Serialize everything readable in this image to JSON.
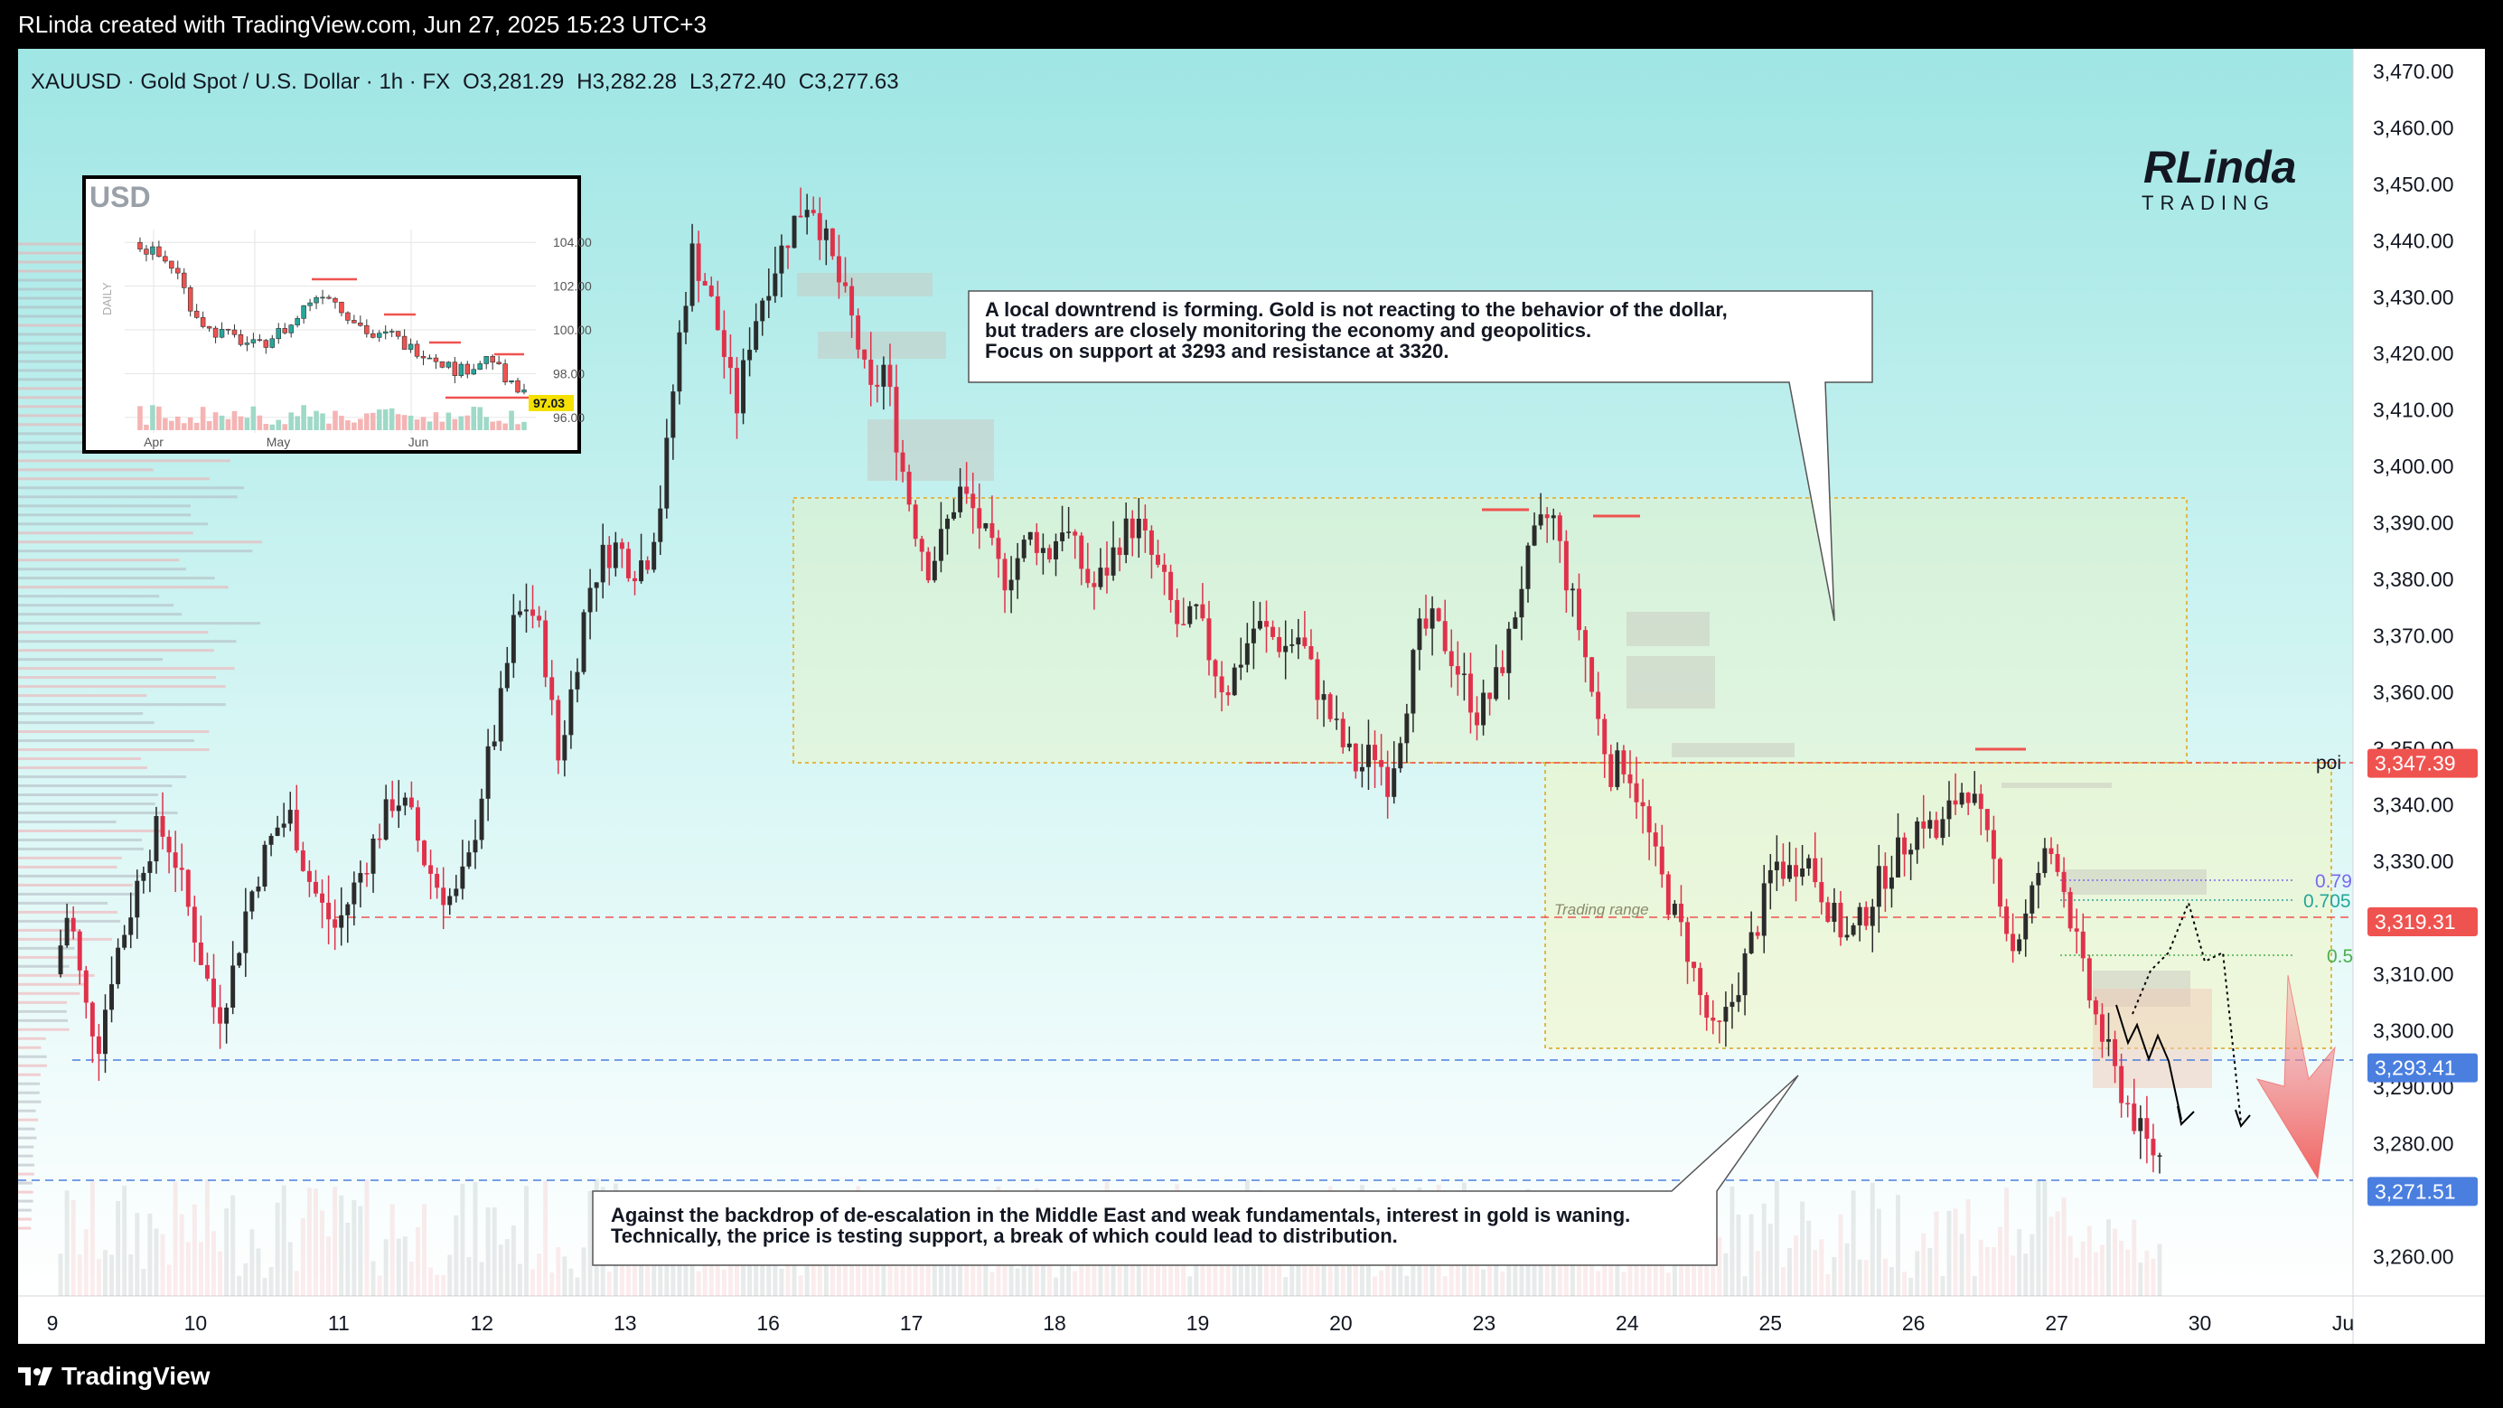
{
  "header": {
    "attribution": "RLinda created with TradingView.com, Jun 27, 2025 15:23 UTC+3"
  },
  "legend": {
    "symbol": "XAUUSD · Gold Spot / U.S. Dollar · 1h · FX",
    "open_label": "O",
    "open": "3,281.29",
    "high_label": "H",
    "high": "3,282.28",
    "low_label": "L",
    "low": "3,272.40",
    "close_label": "C",
    "close": "3,277.63"
  },
  "branding": {
    "logo_text": "RLinda",
    "logo_sub": "TRADING",
    "footer": "TradingView"
  },
  "colors": {
    "up": "#26a69a",
    "down": "#ef5350",
    "candle_up": "#2b2b2b",
    "candle_down": "#e0314b",
    "bg_top": "#9fe6e4",
    "bg_bottom": "#ffffff",
    "support": "#4a7fe0",
    "resistance": "#ef5350",
    "zone": "#f6f4c8"
  },
  "chart_data": [
    {
      "type": "candlestick",
      "title": "XAUUSD · Gold Spot / U.S. Dollar · 1h · FX",
      "x_tick_labels": [
        "9",
        "10",
        "11",
        "12",
        "13",
        "16",
        "17",
        "18",
        "19",
        "20",
        "23",
        "24",
        "25",
        "26",
        "27",
        "30",
        "Ju"
      ],
      "y_tick_labels": [
        "3,470.00",
        "3,460.00",
        "3,450.00",
        "3,440.00",
        "3,430.00",
        "3,420.00",
        "3,410.00",
        "3,400.00",
        "3,390.00",
        "3,380.00",
        "3,370.00",
        "3,360.00",
        "3,350.00",
        "3,340.00",
        "3,330.00",
        "3,320.00",
        "3,310.00",
        "3,300.00",
        "3,290.00",
        "3,280.00",
        "3,260.00"
      ],
      "ylim": [
        3253,
        3474
      ],
      "price_path_points": [
        [
          0,
          3310
        ],
        [
          4,
          3322
        ],
        [
          8,
          3305
        ],
        [
          12,
          3298
        ],
        [
          16,
          3312
        ],
        [
          20,
          3320
        ],
        [
          24,
          3330
        ],
        [
          28,
          3336
        ],
        [
          32,
          3332
        ],
        [
          36,
          3322
        ],
        [
          40,
          3312
        ],
        [
          44,
          3302
        ],
        [
          48,
          3310
        ],
        [
          52,
          3322
        ],
        [
          56,
          3330
        ],
        [
          60,
          3336
        ],
        [
          64,
          3338
        ],
        [
          68,
          3328
        ],
        [
          72,
          3322
        ],
        [
          76,
          3318
        ],
        [
          80,
          3324
        ],
        [
          84,
          3330
        ],
        [
          88,
          3336
        ],
        [
          92,
          3342
        ],
        [
          96,
          3338
        ],
        [
          100,
          3330
        ],
        [
          104,
          3325
        ],
        [
          108,
          3323
        ],
        [
          112,
          3330
        ],
        [
          116,
          3345
        ],
        [
          120,
          3356
        ],
        [
          124,
          3372
        ],
        [
          128,
          3376
        ],
        [
          132,
          3368
        ],
        [
          136,
          3348
        ],
        [
          140,
          3362
        ],
        [
          144,
          3378
        ],
        [
          148,
          3384
        ],
        [
          152,
          3386
        ],
        [
          156,
          3382
        ],
        [
          160,
          3384
        ],
        [
          164,
          3395
        ],
        [
          168,
          3420
        ],
        [
          172,
          3438
        ],
        [
          176,
          3432
        ],
        [
          180,
          3422
        ],
        [
          184,
          3410
        ],
        [
          188,
          3424
        ],
        [
          192,
          3432
        ],
        [
          196,
          3438
        ],
        [
          200,
          3444
        ],
        [
          204,
          3448
        ],
        [
          208,
          3440
        ],
        [
          212,
          3432
        ],
        [
          216,
          3424
        ],
        [
          220,
          3412
        ],
        [
          224,
          3418
        ],
        [
          228,
          3402
        ],
        [
          232,
          3390
        ],
        [
          236,
          3382
        ],
        [
          240,
          3388
        ],
        [
          244,
          3396
        ],
        [
          248,
          3392
        ],
        [
          252,
          3386
        ],
        [
          256,
          3380
        ],
        [
          260,
          3384
        ],
        [
          264,
          3388
        ],
        [
          268,
          3384
        ],
        [
          272,
          3390
        ],
        [
          276,
          3384
        ],
        [
          280,
          3378
        ],
        [
          284,
          3382
        ],
        [
          288,
          3388
        ],
        [
          292,
          3390
        ],
        [
          296,
          3384
        ],
        [
          300,
          3378
        ],
        [
          304,
          3370
        ],
        [
          308,
          3374
        ],
        [
          312,
          3366
        ],
        [
          316,
          3360
        ],
        [
          320,
          3366
        ],
        [
          324,
          3372
        ],
        [
          328,
          3370
        ],
        [
          332,
          3368
        ],
        [
          336,
          3370
        ],
        [
          340,
          3362
        ],
        [
          344,
          3356
        ],
        [
          348,
          3350
        ],
        [
          352,
          3346
        ],
        [
          356,
          3350
        ],
        [
          360,
          3344
        ],
        [
          364,
          3356
        ],
        [
          368,
          3370
        ],
        [
          372,
          3372
        ],
        [
          376,
          3368
        ],
        [
          380,
          3362
        ],
        [
          384,
          3356
        ],
        [
          388,
          3360
        ],
        [
          392,
          3368
        ],
        [
          396,
          3380
        ],
        [
          400,
          3388
        ],
        [
          404,
          3392
        ],
        [
          408,
          3380
        ],
        [
          412,
          3370
        ],
        [
          416,
          3356
        ],
        [
          420,
          3346
        ],
        [
          424,
          3348
        ],
        [
          428,
          3340
        ],
        [
          432,
          3330
        ],
        [
          436,
          3322
        ],
        [
          440,
          3316
        ],
        [
          444,
          3306
        ],
        [
          448,
          3298
        ],
        [
          452,
          3304
        ],
        [
          456,
          3312
        ],
        [
          460,
          3320
        ],
        [
          464,
          3330
        ],
        [
          468,
          3328
        ],
        [
          472,
          3332
        ],
        [
          476,
          3326
        ],
        [
          480,
          3320
        ],
        [
          484,
          3316
        ],
        [
          488,
          3320
        ],
        [
          492,
          3326
        ],
        [
          496,
          3330
        ],
        [
          500,
          3334
        ],
        [
          504,
          3338
        ],
        [
          508,
          3334
        ],
        [
          512,
          3340
        ],
        [
          516,
          3344
        ],
        [
          520,
          3336
        ],
        [
          524,
          3328
        ],
        [
          528,
          3314
        ],
        [
          532,
          3320
        ],
        [
          536,
          3330
        ],
        [
          540,
          3332
        ],
        [
          544,
          3320
        ],
        [
          548,
          3308
        ],
        [
          552,
          3300
        ],
        [
          556,
          3292
        ],
        [
          560,
          3286
        ],
        [
          564,
          3280
        ],
        [
          568,
          3277.63
        ]
      ],
      "levels": [
        {
          "label": "3,347.39",
          "value": 3347.39,
          "color": "#ef5350",
          "side_label": "poi"
        },
        {
          "label": "3,319.31",
          "value": 3319.31,
          "color": "#ef5350"
        },
        {
          "label": "3,293.41",
          "value": 3293.41,
          "color": "#4a7fe0"
        },
        {
          "label": "3,271.51",
          "value": 3271.51,
          "color": "#4a7fe0"
        }
      ],
      "fib_labels": [
        "0.79",
        "0.705",
        "0.5"
      ],
      "annotations": [
        {
          "id": "top",
          "lines": [
            "A local downtrend is forming. Gold is not reacting to the behavior of the dollar,",
            "but traders are closely monitoring the economy and geopolitics.",
            "Focus on support at 3293 and resistance at 3320."
          ]
        },
        {
          "id": "bottom",
          "lines": [
            "Against the backdrop of de-escalation in the Middle East and weak fundamentals, interest in gold is waning.",
            "Technically, the price is testing support, a break of which could lead to distribution."
          ]
        }
      ],
      "zone_label": "Trading range"
    },
    {
      "type": "candlestick",
      "title": "USD",
      "side_label": "DAILY",
      "x_tick_labels": [
        "Apr",
        "May",
        "Jun"
      ],
      "y_tick_labels": [
        "104.00",
        "102.00",
        "100.00",
        "98.00",
        "96.00"
      ],
      "ylim": [
        95.5,
        105
      ],
      "last_price": "97.03",
      "price_path_points": [
        [
          0,
          104
        ],
        [
          5,
          103.5
        ],
        [
          10,
          102.8
        ],
        [
          14,
          101
        ],
        [
          18,
          100
        ],
        [
          22,
          99.8
        ],
        [
          26,
          99.5
        ],
        [
          30,
          99.2
        ],
        [
          34,
          99.8
        ],
        [
          38,
          100.2
        ],
        [
          42,
          101.3
        ],
        [
          46,
          101.8
        ],
        [
          50,
          101
        ],
        [
          54,
          100.3
        ],
        [
          58,
          99.6
        ],
        [
          62,
          99.8
        ],
        [
          66,
          99.2
        ],
        [
          70,
          99
        ],
        [
          74,
          98.6
        ],
        [
          78,
          98.1
        ],
        [
          82,
          98.4
        ],
        [
          86,
          98.8
        ],
        [
          90,
          97.5
        ],
        [
          94,
          97.03
        ]
      ]
    }
  ]
}
